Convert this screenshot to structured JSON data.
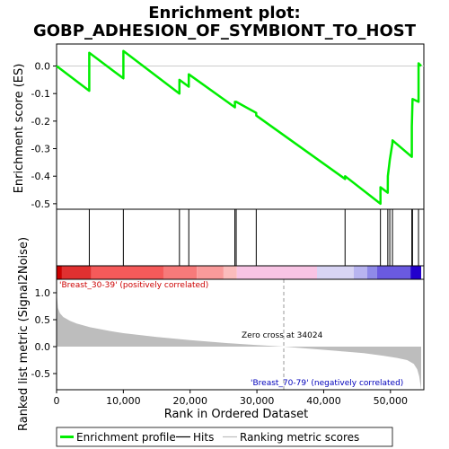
{
  "chart_data": {
    "type": "line",
    "title": "Enrichment plot:",
    "subtitle": "GOBP_ADHESION_OF_SYMBIONT_TO_HOST",
    "xlabel": "Rank in Ordered Dataset",
    "xlim": [
      0,
      55000
    ],
    "x_ticks": [
      0,
      10000,
      20000,
      30000,
      40000,
      50000
    ],
    "x_tick_labels": [
      "0",
      "10,000",
      "20,000",
      "30,000",
      "40,000",
      "50,000"
    ],
    "es_panel": {
      "ylabel": "Enrichment score (ES)",
      "ylim": [
        -0.52,
        0.08
      ],
      "y_ticks": [
        0.0,
        -0.1,
        -0.2,
        -0.3,
        -0.4,
        -0.5
      ],
      "y_tick_labels": [
        "0.0",
        "-0.1",
        "-0.2",
        "-0.3",
        "-0.4",
        "-0.5"
      ],
      "series": [
        {
          "name": "Enrichment profile",
          "color": "#00ee00",
          "x": [
            0,
            4900,
            4901,
            10000,
            10001,
            18400,
            18401,
            19800,
            19801,
            26700,
            26701,
            26900,
            26901,
            29900,
            29901,
            43200,
            43201,
            48500,
            48501,
            49600,
            49601,
            49900,
            49901,
            50300,
            50301,
            53200,
            53201,
            53300,
            53301,
            54200,
            54201,
            54600
          ],
          "y": [
            0.0,
            -0.09,
            0.048,
            -0.045,
            0.055,
            -0.1,
            -0.05,
            -0.075,
            -0.03,
            -0.15,
            -0.13,
            -0.13,
            -0.13,
            -0.17,
            -0.18,
            -0.41,
            -0.4,
            -0.5,
            -0.44,
            -0.46,
            -0.4,
            -0.34,
            -0.34,
            -0.28,
            -0.27,
            -0.33,
            -0.22,
            -0.12,
            -0.12,
            -0.13,
            0.01,
            0.0
          ]
        }
      ]
    },
    "hits": [
      4900,
      10000,
      18400,
      19800,
      26700,
      26900,
      29900,
      43200,
      48500,
      49600,
      49900,
      50300,
      53200,
      53300,
      54200
    ],
    "heat_strip": {
      "segments": [
        {
          "start": 0,
          "end": 800,
          "color": "#cc0000"
        },
        {
          "start": 800,
          "end": 5200,
          "color": "#e03030"
        },
        {
          "start": 5200,
          "end": 16000,
          "color": "#f55a5a"
        },
        {
          "start": 16000,
          "end": 21000,
          "color": "#f77a7a"
        },
        {
          "start": 21000,
          "end": 25000,
          "color": "#f99a9a"
        },
        {
          "start": 25000,
          "end": 27000,
          "color": "#fbbcbc"
        },
        {
          "start": 27000,
          "end": 39000,
          "color": "#f8c4e4"
        },
        {
          "start": 39000,
          "end": 44500,
          "color": "#d8d4f4"
        },
        {
          "start": 44500,
          "end": 46500,
          "color": "#b8b4f0"
        },
        {
          "start": 46500,
          "end": 48000,
          "color": "#8f8ae8"
        },
        {
          "start": 48000,
          "end": 53000,
          "color": "#6a5ae0"
        },
        {
          "start": 53000,
          "end": 54600,
          "color": "#2200cc"
        }
      ]
    },
    "metric_panel": {
      "ylabel": "Ranked list metric (Signal2Noise)",
      "ylim": [
        -0.8,
        1.25
      ],
      "y_ticks": [
        1.0,
        0.5,
        0.0,
        -0.5
      ],
      "y_tick_labels": [
        "1.0",
        "0.5",
        "0.0",
        "-0.5"
      ],
      "fill_color": "#bdbdbd",
      "profile_x": [
        0,
        200,
        500,
        1000,
        2000,
        3000,
        5000,
        8000,
        10000,
        15000,
        20000,
        25000,
        30000,
        34024,
        38000,
        42000,
        46000,
        49000,
        51000,
        52500,
        53500,
        54000,
        54300,
        54600
      ],
      "profile_y": [
        1.02,
        0.72,
        0.62,
        0.55,
        0.48,
        0.43,
        0.36,
        0.29,
        0.25,
        0.18,
        0.12,
        0.07,
        0.03,
        0.0,
        -0.04,
        -0.08,
        -0.12,
        -0.17,
        -0.21,
        -0.25,
        -0.32,
        -0.42,
        -0.55,
        -0.8
      ],
      "zero_cross_x": 34024,
      "zero_cross_label": "Zero cross at 34024",
      "pos_label": "'Breast_30-39' (positively correlated)",
      "pos_color": "#cc0000",
      "neg_label": "'Breast_70-79' (negatively correlated)",
      "neg_color": "#0000bb"
    },
    "legend": {
      "placement": "bottom",
      "items": [
        {
          "label": "Enrichment profile",
          "color": "#00ee00"
        },
        {
          "label": "Hits",
          "color": "#000000"
        },
        {
          "label": "Ranking metric scores",
          "color": "#bdbdbd"
        }
      ]
    }
  }
}
